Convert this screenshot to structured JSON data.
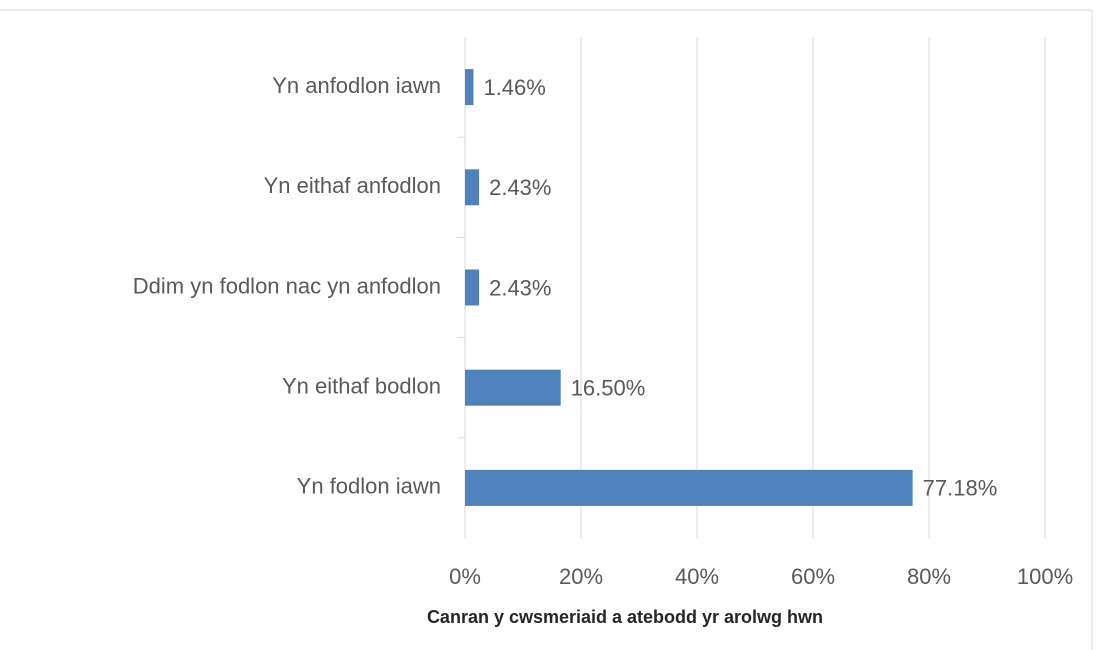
{
  "chart_data": {
    "type": "bar",
    "orientation": "horizontal",
    "categories": [
      "Yn anfodlon iawn",
      "Yn eithaf anfodlon",
      "Ddim yn fodlon nac yn anfodlon",
      "Yn eithaf bodlon",
      "Yn fodlon iawn"
    ],
    "values": [
      1.46,
      2.43,
      2.43,
      16.5,
      77.18
    ],
    "value_labels": [
      "1.46%",
      "2.43%",
      "2.43%",
      "16.50%",
      "77.18%"
    ],
    "color": "#4f81bd",
    "xlim": [
      0,
      100
    ],
    "xticks": [
      {
        "value": 0,
        "label": "0%"
      },
      {
        "value": 20,
        "label": "20%"
      },
      {
        "value": 40,
        "label": "40%"
      },
      {
        "value": 60,
        "label": "60%"
      },
      {
        "value": 80,
        "label": "80%"
      },
      {
        "value": 100,
        "label": "100%"
      }
    ],
    "x_label": "Canran y cwsmeriaid a atebodd yr arolwg hwn",
    "grid": true
  }
}
